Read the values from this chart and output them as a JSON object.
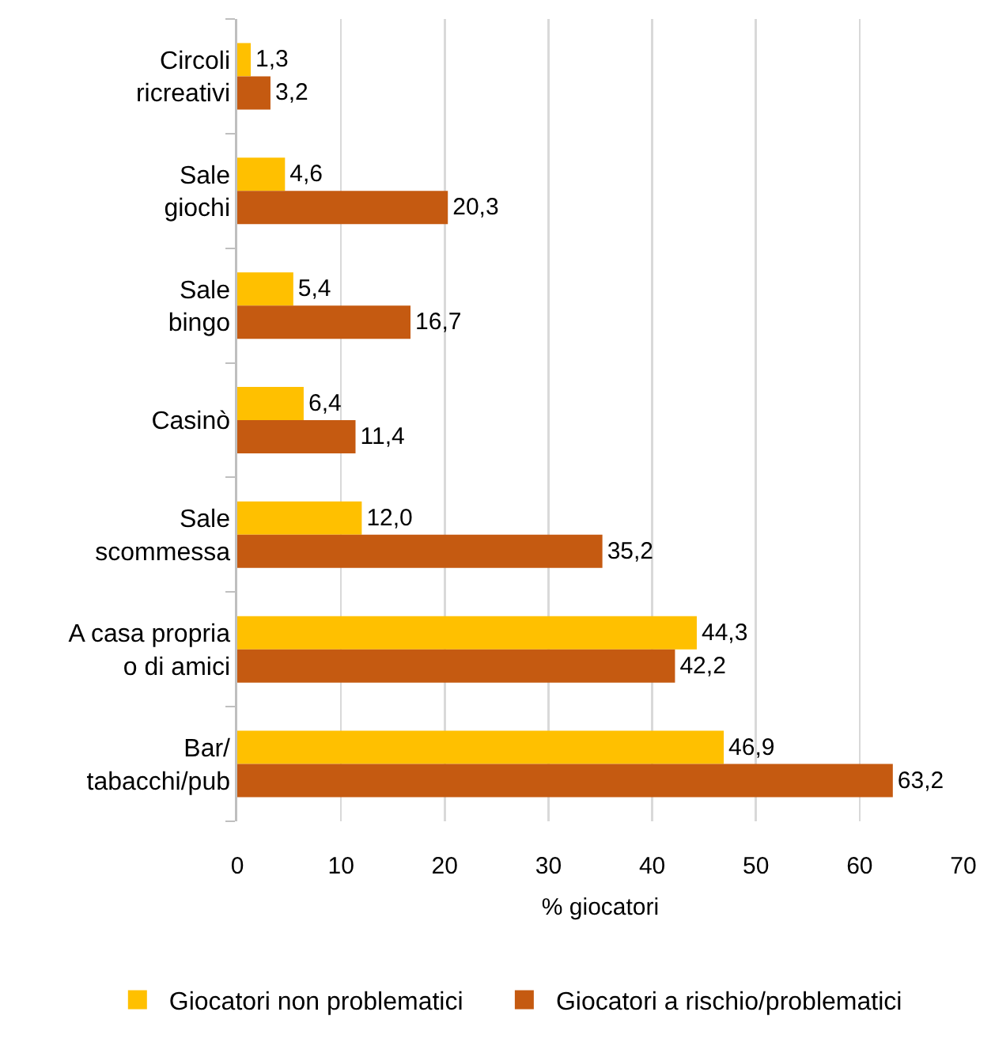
{
  "chart_data": {
    "type": "bar",
    "orientation": "horizontal",
    "categories": [
      "Circoli\nricreativi",
      "Sale\ngiochi",
      "Sale\nbingo",
      "Casinò",
      "Sale\nscommessa",
      "A casa propria\no di amici",
      "Bar/\ntabacchi/pub"
    ],
    "series": [
      {
        "name": "Giocatori non problematici",
        "color": "#ffc000",
        "values": [
          1.3,
          4.6,
          5.4,
          6.4,
          12.0,
          44.3,
          46.9
        ],
        "value_labels": [
          "1,3",
          "4,6",
          "5,4",
          "6,4",
          "12,0",
          "44,3",
          "46,9"
        ]
      },
      {
        "name": "Giocatori a rischio/problematici",
        "color": "#c55a11",
        "values": [
          3.2,
          20.3,
          16.7,
          11.4,
          35.2,
          42.2,
          63.2
        ],
        "value_labels": [
          "3,2",
          "20,3",
          "16,7",
          "11,4",
          "35,2",
          "42,2",
          "63,2"
        ]
      }
    ],
    "xlabel": "% giocatori",
    "xlim": [
      0,
      70
    ],
    "xticks": [
      0,
      10,
      20,
      30,
      40,
      50,
      60,
      70
    ],
    "grid": "x",
    "legend": "bottom"
  }
}
